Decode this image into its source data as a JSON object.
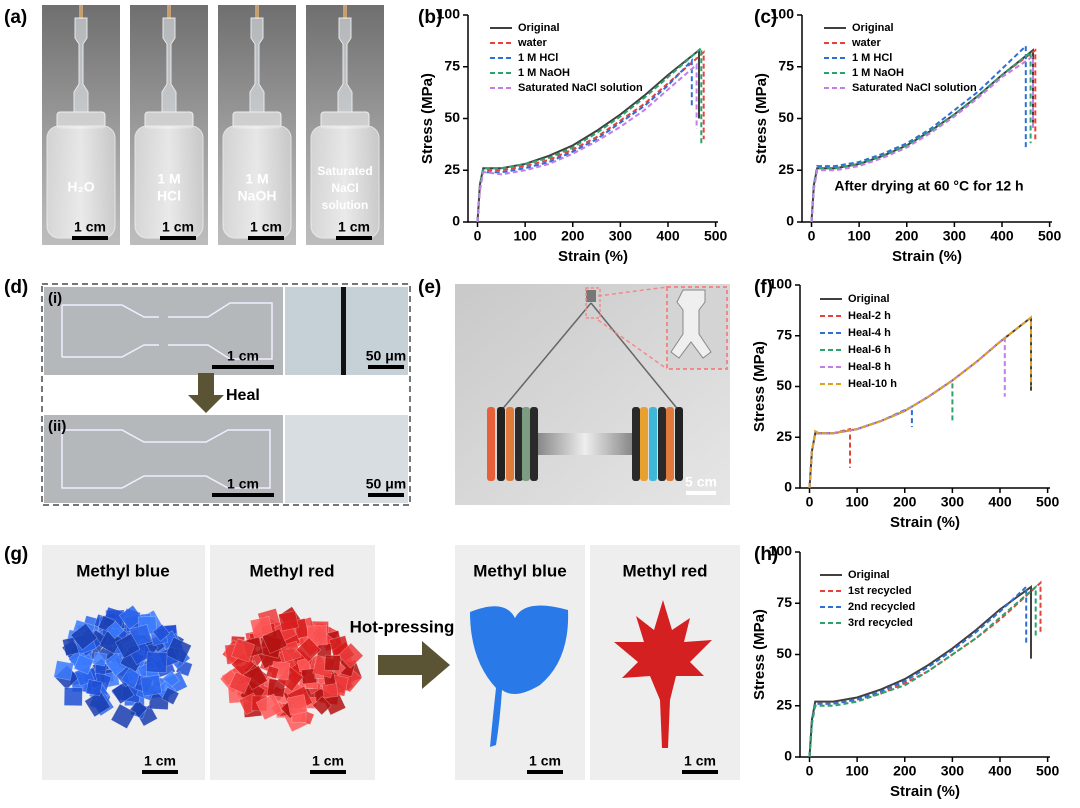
{
  "panel_labels": [
    "(a)",
    "(b)",
    "(c)",
    "(d)",
    "(e)",
    "(f)",
    "(g)",
    "(h)"
  ],
  "photos": {
    "a": {
      "samples": [
        {
          "lines": [
            "H₂O"
          ]
        },
        {
          "lines": [
            "1 M",
            "HCl"
          ]
        },
        {
          "lines": [
            "1 M",
            "NaOH"
          ]
        },
        {
          "lines": [
            "Saturated",
            "NaCl",
            "solution"
          ]
        }
      ],
      "scale": "1 cm"
    },
    "d": {
      "rows": [
        {
          "label": "(i)",
          "scale_macro": "1 cm",
          "scale_micro": "50 μm"
        },
        {
          "label": "(ii)",
          "scale_macro": "1 cm",
          "scale_micro": "50 μm"
        }
      ],
      "arrow": "Heal"
    },
    "e": {
      "scale": "5 cm"
    },
    "g": {
      "before": [
        "Methyl blue",
        "Methyl red"
      ],
      "after": [
        "Methyl blue",
        "Methyl red"
      ],
      "arrow": "Hot-pressing",
      "scale": "1 cm"
    }
  },
  "chart_data": [
    {
      "type": "line",
      "xlabel": "Strain (%)",
      "ylabel": "Stress (MPa)",
      "xlim": [
        -20,
        505
      ],
      "ylim": [
        0,
        100
      ],
      "xticks": [
        0,
        100,
        200,
        300,
        400,
        500
      ],
      "yticks": [
        0,
        25,
        50,
        75,
        100
      ],
      "series": [
        {
          "name": "Original",
          "color": "#404040",
          "dashed": false,
          "x": [
            0,
            5,
            12,
            20,
            50,
            100,
            150,
            200,
            250,
            300,
            350,
            400,
            465,
            465
          ],
          "values": [
            0,
            18,
            26,
            26,
            26,
            28,
            32,
            37,
            44,
            52,
            61,
            71,
            83,
            50
          ]
        },
        {
          "name": "water",
          "color": "#e8413c",
          "dashed": true,
          "x": [
            0,
            5,
            12,
            20,
            50,
            100,
            150,
            200,
            250,
            300,
            350,
            400,
            475,
            475
          ],
          "values": [
            0,
            16,
            25,
            25,
            25,
            27,
            30,
            35,
            41,
            49,
            57,
            67,
            82,
            40
          ]
        },
        {
          "name": "1 M HCl",
          "color": "#2e6fd6",
          "dashed": true,
          "x": [
            0,
            5,
            12,
            20,
            50,
            100,
            150,
            200,
            250,
            300,
            350,
            400,
            450,
            450
          ],
          "values": [
            0,
            16,
            25,
            24,
            24,
            26,
            29,
            34,
            40,
            48,
            56,
            66,
            78,
            55
          ]
        },
        {
          "name": "1 M NaOH",
          "color": "#2ca36b",
          "dashed": true,
          "x": [
            0,
            5,
            12,
            20,
            50,
            100,
            150,
            200,
            250,
            300,
            350,
            400,
            470,
            470
          ],
          "values": [
            0,
            17,
            26,
            26,
            26,
            28,
            31,
            36,
            43,
            51,
            60,
            70,
            84,
            38
          ]
        },
        {
          "name": "Saturated NaCl solution",
          "color": "#c27de8",
          "dashed": true,
          "x": [
            0,
            5,
            12,
            20,
            50,
            100,
            150,
            200,
            250,
            300,
            350,
            400,
            460,
            460
          ],
          "values": [
            0,
            15,
            24,
            24,
            23,
            25,
            28,
            33,
            39,
            46,
            54,
            64,
            76,
            45
          ]
        }
      ]
    },
    {
      "type": "line",
      "xlabel": "Strain (%)",
      "ylabel": "Stress (MPa)",
      "xlim": [
        -20,
        505
      ],
      "ylim": [
        0,
        100
      ],
      "xticks": [
        0,
        100,
        200,
        300,
        400,
        500
      ],
      "yticks": [
        0,
        25,
        50,
        75,
        100
      ],
      "annotation": "After drying at 60 °C for 12 h",
      "series": [
        {
          "name": "Original",
          "color": "#404040",
          "dashed": false,
          "x": [
            0,
            5,
            12,
            20,
            50,
            100,
            150,
            200,
            250,
            300,
            350,
            400,
            465,
            465
          ],
          "values": [
            0,
            18,
            26,
            26,
            26,
            28,
            32,
            37,
            44,
            52,
            61,
            71,
            83,
            48
          ]
        },
        {
          "name": "water",
          "color": "#e8413c",
          "dashed": true,
          "x": [
            0,
            5,
            12,
            20,
            50,
            100,
            150,
            200,
            250,
            300,
            350,
            400,
            470,
            470
          ],
          "values": [
            0,
            17,
            26,
            26,
            26,
            28,
            32,
            37,
            44,
            52,
            61,
            71,
            83,
            40
          ]
        },
        {
          "name": "1 M HCl",
          "color": "#2e6fd6",
          "dashed": true,
          "x": [
            0,
            5,
            12,
            20,
            50,
            100,
            150,
            200,
            250,
            300,
            350,
            400,
            450,
            450
          ],
          "values": [
            0,
            18,
            27,
            27,
            27,
            29,
            33,
            38,
            45,
            54,
            63,
            74,
            85,
            35
          ]
        },
        {
          "name": "1 M NaOH",
          "color": "#2ca36b",
          "dashed": true,
          "x": [
            0,
            5,
            12,
            20,
            50,
            100,
            150,
            200,
            250,
            300,
            350,
            400,
            460,
            460
          ],
          "values": [
            0,
            17,
            26,
            26,
            26,
            28,
            32,
            37,
            44,
            52,
            61,
            71,
            82,
            38
          ]
        },
        {
          "name": "Saturated NaCl solution",
          "color": "#c27de8",
          "dashed": true,
          "x": [
            0,
            5,
            12,
            20,
            50,
            100,
            150,
            200,
            250,
            300,
            350,
            400,
            465,
            465
          ],
          "values": [
            0,
            16,
            25,
            25,
            25,
            27,
            31,
            36,
            43,
            51,
            60,
            70,
            80,
            45
          ]
        }
      ]
    },
    {
      "type": "line",
      "xlabel": "Strain (%)",
      "ylabel": "Stress (MPa)",
      "xlim": [
        -20,
        505
      ],
      "ylim": [
        0,
        100
      ],
      "xticks": [
        0,
        100,
        200,
        300,
        400,
        500
      ],
      "yticks": [
        0,
        25,
        50,
        75,
        100
      ],
      "series": [
        {
          "name": "Original",
          "color": "#404040",
          "dashed": false,
          "x": [
            0,
            5,
            12,
            20,
            50,
            100,
            150,
            200,
            250,
            300,
            350,
            400,
            465,
            465
          ],
          "values": [
            0,
            18,
            27,
            27,
            27,
            29,
            33,
            38,
            45,
            53,
            62,
            72,
            84,
            48
          ]
        },
        {
          "name": "Heal-2 h",
          "color": "#e8413c",
          "dashed": true,
          "x": [
            0,
            5,
            12,
            20,
            50,
            85,
            85
          ],
          "values": [
            0,
            18,
            27,
            27,
            27,
            29,
            10
          ]
        },
        {
          "name": "Heal-4 h",
          "color": "#2e6fd6",
          "dashed": true,
          "x": [
            0,
            5,
            12,
            20,
            50,
            100,
            150,
            215,
            215
          ],
          "values": [
            0,
            18,
            27,
            27,
            27,
            29,
            33,
            40,
            30
          ]
        },
        {
          "name": "Heal-6 h",
          "color": "#2ca36b",
          "dashed": true,
          "x": [
            0,
            5,
            12,
            20,
            50,
            100,
            150,
            200,
            250,
            300,
            300
          ],
          "values": [
            0,
            18,
            27,
            27,
            27,
            29,
            33,
            38,
            45,
            53,
            32
          ]
        },
        {
          "name": "Heal-8 h",
          "color": "#c27de8",
          "dashed": true,
          "x": [
            0,
            5,
            12,
            20,
            50,
            100,
            150,
            200,
            250,
            300,
            350,
            410,
            410
          ],
          "values": [
            0,
            18,
            27,
            27,
            27,
            29,
            33,
            38,
            45,
            53,
            62,
            74,
            45
          ]
        },
        {
          "name": "Heal-10 h",
          "color": "#e0a020",
          "dashed": true,
          "x": [
            0,
            5,
            12,
            20,
            50,
            100,
            150,
            200,
            250,
            300,
            350,
            400,
            465,
            465
          ],
          "values": [
            0,
            18,
            28,
            27,
            27,
            29,
            33,
            38,
            45,
            53,
            62,
            72,
            84,
            50
          ]
        }
      ]
    },
    {
      "type": "line",
      "xlabel": "Strain (%)",
      "ylabel": "Stress (MPa)",
      "xlim": [
        -20,
        505
      ],
      "ylim": [
        0,
        100
      ],
      "xticks": [
        0,
        100,
        200,
        300,
        400,
        500
      ],
      "yticks": [
        0,
        25,
        50,
        75,
        100
      ],
      "series": [
        {
          "name": "Original",
          "color": "#404040",
          "dashed": false,
          "x": [
            0,
            5,
            12,
            20,
            50,
            100,
            150,
            200,
            250,
            300,
            350,
            400,
            465,
            465
          ],
          "values": [
            0,
            18,
            27,
            27,
            27,
            29,
            33,
            38,
            45,
            53,
            62,
            72,
            83,
            48
          ]
        },
        {
          "name": "1st recycled",
          "color": "#e8413c",
          "dashed": true,
          "x": [
            0,
            5,
            12,
            20,
            50,
            100,
            150,
            200,
            250,
            300,
            350,
            400,
            485,
            485
          ],
          "values": [
            0,
            17,
            26,
            26,
            26,
            28,
            31,
            36,
            42,
            50,
            58,
            67,
            85,
            60
          ]
        },
        {
          "name": "2nd recycled",
          "color": "#2e6fd6",
          "dashed": true,
          "x": [
            0,
            5,
            12,
            20,
            50,
            100,
            150,
            200,
            250,
            300,
            350,
            400,
            455,
            455
          ],
          "values": [
            0,
            17,
            26,
            26,
            26,
            28,
            32,
            37,
            44,
            52,
            61,
            71,
            83,
            55
          ]
        },
        {
          "name": "3rd recycled",
          "color": "#2ca36b",
          "dashed": true,
          "x": [
            0,
            5,
            12,
            20,
            50,
            100,
            150,
            200,
            250,
            300,
            350,
            400,
            475,
            475
          ],
          "values": [
            0,
            16,
            25,
            25,
            25,
            27,
            31,
            35,
            42,
            50,
            58,
            68,
            83,
            58
          ]
        }
      ]
    }
  ]
}
